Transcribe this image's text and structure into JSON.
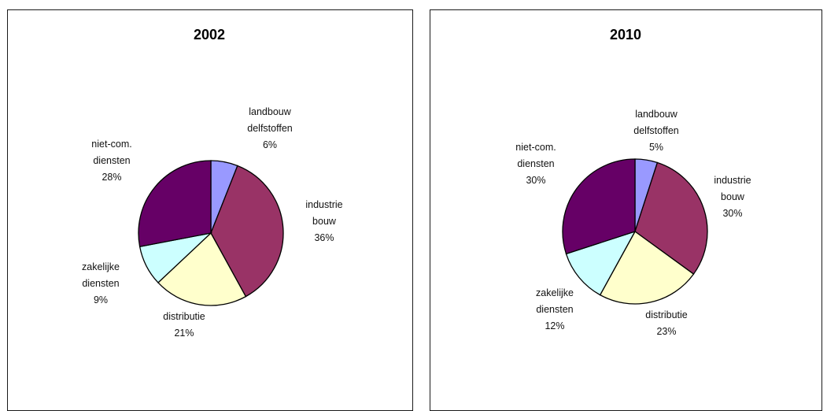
{
  "chart_data": [
    {
      "type": "pie",
      "title": "2002",
      "slices": [
        {
          "label_lines": [
            "landbouw",
            "delfstoffen"
          ],
          "value": 6,
          "value_label": "6%",
          "color": "#9999ff"
        },
        {
          "label_lines": [
            "industrie",
            "bouw"
          ],
          "value": 36,
          "value_label": "36%",
          "color": "#993366"
        },
        {
          "label_lines": [
            "distributie"
          ],
          "value": 21,
          "value_label": "21%",
          "color": "#ffffcc"
        },
        {
          "label_lines": [
            "zakelijke",
            "diensten"
          ],
          "value": 9,
          "value_label": "9%",
          "color": "#ccffff"
        },
        {
          "label_lines": [
            "niet-com.",
            "diensten"
          ],
          "value": 28,
          "value_label": "28%",
          "color": "#660066"
        }
      ]
    },
    {
      "type": "pie",
      "title": "2010",
      "slices": [
        {
          "label_lines": [
            "landbouw",
            "delfstoffen"
          ],
          "value": 5,
          "value_label": "5%",
          "color": "#9999ff"
        },
        {
          "label_lines": [
            "industrie",
            "bouw"
          ],
          "value": 30,
          "value_label": "30%",
          "color": "#993366"
        },
        {
          "label_lines": [
            "distributie"
          ],
          "value": 23,
          "value_label": "23%",
          "color": "#ffffcc"
        },
        {
          "label_lines": [
            "zakelijke",
            "diensten"
          ],
          "value": 12,
          "value_label": "12%",
          "color": "#ccffff"
        },
        {
          "label_lines": [
            "niet-com.",
            "diensten"
          ],
          "value": 30,
          "value_label": "30%",
          "color": "#660066"
        }
      ]
    }
  ]
}
